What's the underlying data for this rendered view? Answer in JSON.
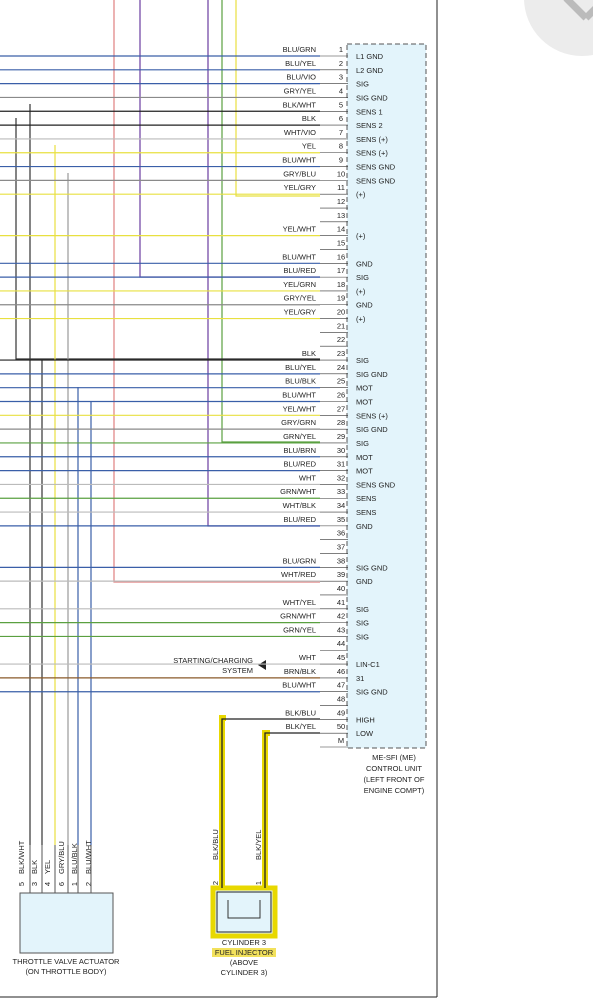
{
  "connector": {
    "label": [
      "ME-SFI (ME)",
      "CONTROL UNIT",
      "(LEFT FRONT OF",
      "ENGINE COMPT)"
    ],
    "pins": [
      {
        "pin": "1",
        "wire": "BLU/GRN",
        "function": "L1 GND"
      },
      {
        "pin": "2",
        "wire": "BLU/YEL",
        "function": "L2 GND"
      },
      {
        "pin": "3",
        "wire": "BLU/VIO",
        "function": "SIG"
      },
      {
        "pin": "4",
        "wire": "GRY/YEL",
        "function": "SIG GND"
      },
      {
        "pin": "5",
        "wire": "BLK/WHT",
        "function": "SENS 1"
      },
      {
        "pin": "6",
        "wire": "BLK",
        "function": "SENS 2"
      },
      {
        "pin": "7",
        "wire": "WHT/VIO",
        "function": "SENS (+)"
      },
      {
        "pin": "8",
        "wire": "YEL",
        "function": "SENS (+)"
      },
      {
        "pin": "9",
        "wire": "BLU/WHT",
        "function": "SENS GND"
      },
      {
        "pin": "10",
        "wire": "GRY/BLU",
        "function": "SENS GND"
      },
      {
        "pin": "11",
        "wire": "YEL/GRY",
        "function": "(+)"
      },
      {
        "pin": "12"
      },
      {
        "pin": "13"
      },
      {
        "pin": "14",
        "wire": "YEL/WHT",
        "function": "(+)"
      },
      {
        "pin": "15"
      },
      {
        "pin": "16",
        "wire": "BLU/WHT",
        "function": "GND"
      },
      {
        "pin": "17",
        "wire": "BLU/RED",
        "function": "SIG"
      },
      {
        "pin": "18",
        "wire": "YEL/GRN",
        "function": "(+)"
      },
      {
        "pin": "19",
        "wire": "GRY/YEL",
        "function": "GND"
      },
      {
        "pin": "20",
        "wire": "YEL/GRY",
        "function": "(+)"
      },
      {
        "pin": "21"
      },
      {
        "pin": "22"
      },
      {
        "pin": "23",
        "wire": "BLK",
        "function": "SIG"
      },
      {
        "pin": "24",
        "wire": "BLU/YEL",
        "function": "SIG GND"
      },
      {
        "pin": "25",
        "wire": "BLU/BLK",
        "function": "MOT"
      },
      {
        "pin": "26",
        "wire": "BLU/WHT",
        "function": "MOT"
      },
      {
        "pin": "27",
        "wire": "YEL/WHT",
        "function": "SENS (+)"
      },
      {
        "pin": "28",
        "wire": "GRY/GRN",
        "function": "SIG GND"
      },
      {
        "pin": "29",
        "wire": "GRN/YEL",
        "function": "SIG"
      },
      {
        "pin": "30",
        "wire": "BLU/BRN",
        "function": "MOT"
      },
      {
        "pin": "31",
        "wire": "BLU/RED",
        "function": "MOT"
      },
      {
        "pin": "32",
        "wire": "WHT",
        "function": "SENS GND"
      },
      {
        "pin": "33",
        "wire": "GRN/WHT",
        "function": "SENS"
      },
      {
        "pin": "34",
        "wire": "WHT/BLK",
        "function": "SENS"
      },
      {
        "pin": "35",
        "wire": "BLU/RED",
        "function": "GND"
      },
      {
        "pin": "36"
      },
      {
        "pin": "37"
      },
      {
        "pin": "38",
        "wire": "BLU/GRN",
        "function": "SIG GND"
      },
      {
        "pin": "39",
        "wire": "WHT/RED",
        "function": "GND"
      },
      {
        "pin": "40"
      },
      {
        "pin": "41",
        "wire": "WHT/YEL",
        "function": "SIG"
      },
      {
        "pin": "42",
        "wire": "GRN/WHT",
        "function": "SIG"
      },
      {
        "pin": "43",
        "wire": "GRN/YEL",
        "function": "SIG"
      },
      {
        "pin": "44"
      },
      {
        "pin": "45",
        "wire": "WHT",
        "function": "LIN-C1"
      },
      {
        "pin": "46",
        "wire": "BRN/BLK",
        "function": "31"
      },
      {
        "pin": "47",
        "wire": "BLU/WHT",
        "function": "SIG GND"
      },
      {
        "pin": "48"
      },
      {
        "pin": "49",
        "wire": "BLK/BLU",
        "function": "HIGH"
      },
      {
        "pin": "50",
        "wire": "BLK/YEL",
        "function": "LOW"
      },
      {
        "pin": "M"
      }
    ]
  },
  "external_label": [
    "STARTING/CHARGING",
    "SYSTEM"
  ],
  "throttle_actuator": {
    "label": [
      "THROTTLE VALVE ACTUATOR",
      "(ON THROTTLE BODY)"
    ],
    "pins": [
      {
        "pin": "5",
        "wire": "BLK/WHT"
      },
      {
        "pin": "3",
        "wire": "BLK"
      },
      {
        "pin": "4",
        "wire": "YEL"
      },
      {
        "pin": "6",
        "wire": "GRY/BLU"
      },
      {
        "pin": "1",
        "wire": "BLU/BLK"
      },
      {
        "pin": "2",
        "wire": "BLU/WHT"
      }
    ]
  },
  "fuel_injector": {
    "label": [
      "CYLINDER 3",
      "FUEL INJECTOR",
      "(ABOVE",
      "CYLINDER 3)"
    ],
    "pins": [
      {
        "pin": "2",
        "wire": "BLK/BLU"
      },
      {
        "pin": "1",
        "wire": "BLK/YEL"
      }
    ]
  }
}
